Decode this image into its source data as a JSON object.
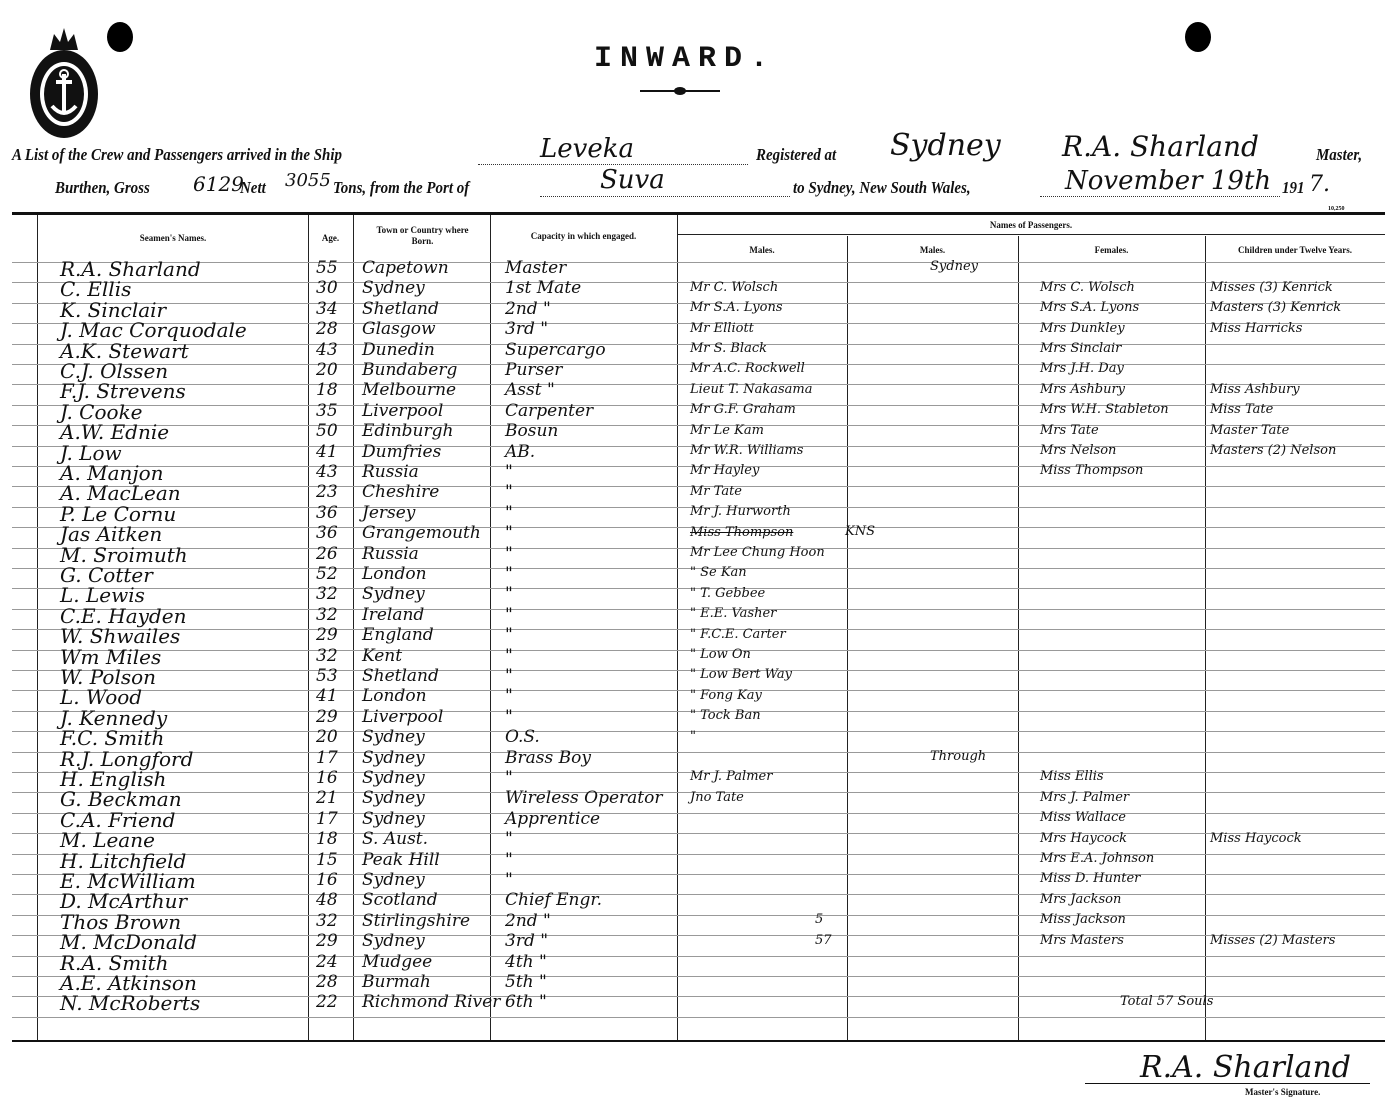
{
  "form_title": "INWARD.",
  "form_number": "10,250",
  "logo_text": "Anchor crest emblem",
  "header": {
    "line1_prefix": "A List of the Crew and Passengers arrived in the Ship",
    "ship": "Leveka",
    "registered_label": "Registered at",
    "registered_port": "Sydney",
    "master_name": "R.A. Sharland",
    "master_label": "Master,",
    "burthen_label": "Burthen, Gross",
    "gross": "6129",
    "nett_label": "Nett",
    "nett": "3055",
    "tons_label": "Tons, from the Port of",
    "from_port": "Suva",
    "to_label": "to Sydney, New South Wales,",
    "date": "November 19th",
    "year_prefix": "191",
    "year_suffix": "7."
  },
  "columns": {
    "name": "Seamen's Names.",
    "age": "Age.",
    "born": "Town or Country where Born.",
    "capacity": "Capacity in which engaged.",
    "passengers": "Names of Passengers.",
    "males1": "Males.",
    "males2": "Males.",
    "females": "Females.",
    "children": "Children under Twelve Years."
  },
  "rows": [
    {
      "name": "R.A. Sharland",
      "age": "55",
      "born": "Capetown",
      "capacity": "Master",
      "male": "",
      "male2": "Sydney",
      "female": "",
      "child": ""
    },
    {
      "name": "C. Ellis",
      "age": "30",
      "born": "Sydney",
      "capacity": "1st Mate",
      "male": "Mr C. Wolsch",
      "male2": "",
      "female": "Mrs C. Wolsch",
      "child": "Misses (3) Kenrick"
    },
    {
      "name": "K. Sinclair",
      "age": "34",
      "born": "Shetland",
      "capacity": "2nd  \"",
      "male": "Mr S.A. Lyons",
      "male2": "",
      "female": "Mrs S.A. Lyons",
      "child": "Masters (3) Kenrick"
    },
    {
      "name": "J. Mac Corquodale",
      "age": "28",
      "born": "Glasgow",
      "capacity": "3rd  \"",
      "male": "Mr Elliott",
      "male2": "",
      "female": "Mrs Dunkley",
      "child": "Miss Harricks"
    },
    {
      "name": "A.K. Stewart",
      "age": "43",
      "born": "Dunedin",
      "capacity": "Supercargo",
      "male": "Mr S. Black",
      "male2": "",
      "female": "Mrs Sinclair",
      "child": ""
    },
    {
      "name": "C.J. Olssen",
      "age": "20",
      "born": "Bundaberg",
      "capacity": "Purser",
      "male": "Mr A.C. Rockwell",
      "male2": "",
      "female": "Mrs J.H. Day",
      "child": ""
    },
    {
      "name": "F.J. Strevens",
      "age": "18",
      "born": "Melbourne",
      "capacity": "Asst  \"",
      "male": "Lieut T. Nakasama",
      "male2": "",
      "female": "Mrs Ashbury",
      "child": "Miss Ashbury"
    },
    {
      "name": "J. Cooke",
      "age": "35",
      "born": "Liverpool",
      "capacity": "Carpenter",
      "male": "Mr G.F. Graham",
      "male2": "",
      "female": "Mrs W.H. Stableton",
      "child": "Miss Tate"
    },
    {
      "name": "A.W. Ednie",
      "age": "50",
      "born": "Edinburgh",
      "capacity": "Bosun",
      "male": "Mr Le Kam",
      "male2": "",
      "female": "Mrs Tate",
      "child": "Master Tate"
    },
    {
      "name": "J. Low",
      "age": "41",
      "born": "Dumfries",
      "capacity": "AB.",
      "male": "Mr W.R. Williams",
      "male2": "",
      "female": "Mrs Nelson",
      "child": "Masters (2) Nelson"
    },
    {
      "name": "A. Manjon",
      "age": "43",
      "born": "Russia",
      "capacity": "\"",
      "male": "Mr Hayley",
      "male2": "",
      "female": "Miss Thompson",
      "child": ""
    },
    {
      "name": "A. MacLean",
      "age": "23",
      "born": "Cheshire",
      "capacity": "\"",
      "male": "Mr Tate",
      "male2": "",
      "female": "",
      "child": ""
    },
    {
      "name": "P. Le Cornu",
      "age": "36",
      "born": "Jersey",
      "capacity": "\"",
      "male": "Mr J. Hurworth",
      "male2": "",
      "female": "",
      "child": ""
    },
    {
      "name": "Jas Aitken",
      "age": "36",
      "born": "Grangemouth",
      "capacity": "\"",
      "male": "Miss Thompson",
      "male_struck": true,
      "male_note": "KNS",
      "male2": "",
      "female": "",
      "child": ""
    },
    {
      "name": "M. Sroimuth",
      "age": "26",
      "born": "Russia",
      "capacity": "\"",
      "male": "Mr Lee Chung Hoon",
      "male2": "",
      "female": "",
      "child": ""
    },
    {
      "name": "G. Cotter",
      "age": "52",
      "born": "London",
      "capacity": "\"",
      "male": "\"  Se Kan",
      "male2": "",
      "female": "",
      "child": ""
    },
    {
      "name": "L. Lewis",
      "age": "32",
      "born": "Sydney",
      "capacity": "\"",
      "male": "\"  T. Gebbee",
      "male2": "",
      "female": "",
      "child": ""
    },
    {
      "name": "C.E. Hayden",
      "age": "32",
      "born": "Ireland",
      "capacity": "\"",
      "male": "\"  E.E. Vasher",
      "male2": "",
      "female": "",
      "child": ""
    },
    {
      "name": "W. Shwailes",
      "age": "29",
      "born": "England",
      "capacity": "\"",
      "male": "\"  F.C.E. Carter",
      "male2": "",
      "female": "",
      "child": ""
    },
    {
      "name": "Wm Miles",
      "age": "32",
      "born": "Kent",
      "capacity": "\"",
      "male": "\"  Low On",
      "male2": "",
      "female": "",
      "child": ""
    },
    {
      "name": "W. Polson",
      "age": "53",
      "born": "Shetland",
      "capacity": "\"",
      "male": "\"  Low Bert Way",
      "male2": "",
      "female": "",
      "child": ""
    },
    {
      "name": "L. Wood",
      "age": "41",
      "born": "London",
      "capacity": "\"",
      "male": "\"  Fong Kay",
      "male2": "",
      "female": "",
      "child": ""
    },
    {
      "name": "J. Kennedy",
      "age": "29",
      "born": "Liverpool",
      "capacity": "\"",
      "male": "\"  Tock Ban",
      "male2": "",
      "female": "",
      "child": ""
    },
    {
      "name": "F.C. Smith",
      "age": "20",
      "born": "Sydney",
      "capacity": "O.S.",
      "male": "\"",
      "male2": "",
      "female": "",
      "child": ""
    },
    {
      "name": "R.J. Longford",
      "age": "17",
      "born": "Sydney",
      "capacity": "Brass Boy",
      "male": "",
      "male2": "Through",
      "female": "",
      "child": ""
    },
    {
      "name": "H. English",
      "age": "16",
      "born": "Sydney",
      "capacity": "\"",
      "male": "Mr J. Palmer",
      "male2": "",
      "female": "Miss Ellis",
      "child": ""
    },
    {
      "name": "G. Beckman",
      "age": "21",
      "born": "Sydney",
      "capacity": "Wireless Operator",
      "male": "Jno Tate",
      "male2": "",
      "female": "Mrs J. Palmer",
      "child": ""
    },
    {
      "name": "C.A. Friend",
      "age": "17",
      "born": "Sydney",
      "capacity": "Apprentice",
      "male": "",
      "male2": "",
      "female": "Miss Wallace",
      "child": ""
    },
    {
      "name": "M. Leane",
      "age": "18",
      "born": "S. Aust.",
      "capacity": "\"",
      "male": "",
      "male2": "",
      "female": "Mrs Haycock",
      "child": "Miss Haycock"
    },
    {
      "name": "H. Litchfield",
      "age": "15",
      "born": "Peak Hill",
      "capacity": "\"",
      "male": "",
      "male2": "",
      "female": "Mrs E.A. Johnson",
      "child": ""
    },
    {
      "name": "E. McWilliam",
      "age": "16",
      "born": "Sydney",
      "capacity": "\"",
      "male": "",
      "male2": "",
      "female": "Miss D. Hunter",
      "child": ""
    },
    {
      "name": "D. McArthur",
      "age": "48",
      "born": "Scotland",
      "capacity": "Chief Engr.",
      "male": "",
      "male2": "",
      "female": "Mrs Jackson",
      "child": ""
    },
    {
      "name": "Thos Brown",
      "age": "32",
      "born": "Stirlingshire",
      "capacity": "2nd  \"",
      "male": "",
      "male2": "5",
      "female": "Miss Jackson",
      "child": ""
    },
    {
      "name": "M. McDonald",
      "age": "29",
      "born": "Sydney",
      "capacity": "3rd  \"",
      "male": "",
      "male2": "57",
      "female": "Mrs Masters",
      "child": "Misses (2) Masters"
    },
    {
      "name": "R.A. Smith",
      "age": "24",
      "born": "Mudgee",
      "capacity": "4th  \"",
      "male": "",
      "male2": "",
      "female": "",
      "child": ""
    },
    {
      "name": "A.E. Atkinson",
      "age": "28",
      "born": "Burmah",
      "capacity": "5th  \"",
      "male": "",
      "male2": "",
      "female": "",
      "child": ""
    },
    {
      "name": "N. McRoberts",
      "age": "22",
      "born": "Richmond River",
      "capacity": "6th  \"",
      "male": "",
      "male2": "",
      "female": "Total 57 Souls",
      "child": ""
    }
  ],
  "signature": {
    "name": "R.A. Sharland",
    "label": "Master's Signature."
  }
}
